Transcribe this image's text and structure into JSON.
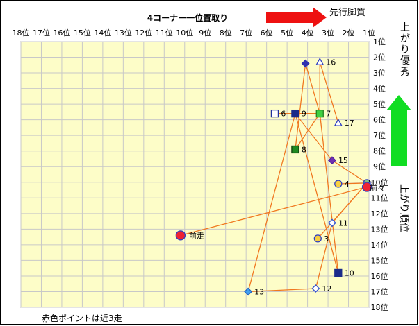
{
  "chart_data": {
    "type": "scatter",
    "title": "4コーナー一位置取り",
    "x_axis": {
      "ticks": [
        "18位",
        "17位",
        "16位",
        "15位",
        "14位",
        "13位",
        "12位",
        "11位",
        "10位",
        "9位",
        "8位",
        "7位",
        "6位",
        "5位",
        "4位",
        "3位",
        "2位",
        "1位"
      ],
      "range": [
        18,
        1
      ]
    },
    "y_axis": {
      "ticks": [
        "1位",
        "2位",
        "3位",
        "4位",
        "5位",
        "6位",
        "7位",
        "8位",
        "9位",
        "10位",
        "11位",
        "12位",
        "13位",
        "14位",
        "15位",
        "16位",
        "17位",
        "18位"
      ],
      "range": [
        1,
        18
      ]
    },
    "annotations": {
      "senko_label": "先行脚質",
      "agari_label": "上がり優秀",
      "agari_axis_label": "上がり順位",
      "footnote": "赤色ポイントは近3走"
    },
    "colors": {
      "arrow_red": "#ee1111",
      "arrow_green": "#11dd22",
      "plot_bg": "#fdfdc8",
      "grid": "#c8c8c8",
      "line": "#f07820"
    },
    "points": [
      {
        "label": "16",
        "x": 3.4,
        "y": 2.3,
        "shape": "triangle",
        "fill": "#ffffff",
        "stroke": "#3040c0"
      },
      {
        "label": "",
        "x": 4.1,
        "y": 2.4,
        "shape": "diamond",
        "fill": "#3030b0",
        "stroke": "#3030b0"
      },
      {
        "label": "6",
        "x": 5.6,
        "y": 5.6,
        "shape": "square",
        "fill": "#ffffff",
        "stroke": "#2030a0"
      },
      {
        "label": "9",
        "x": 4.6,
        "y": 5.6,
        "shape": "square",
        "fill": "#1a2a8a",
        "stroke": "#1a2a8a"
      },
      {
        "label": "7",
        "x": 3.4,
        "y": 5.6,
        "shape": "square",
        "fill": "#40d040",
        "stroke": "#208020"
      },
      {
        "label": "17",
        "x": 2.5,
        "y": 6.2,
        "shape": "triangle",
        "fill": "#ffffff",
        "stroke": "#3040c0"
      },
      {
        "label": "8",
        "x": 4.6,
        "y": 7.9,
        "shape": "square",
        "fill": "#208a20",
        "stroke": "#104010"
      },
      {
        "label": "15",
        "x": 2.8,
        "y": 8.6,
        "shape": "diamond",
        "fill": "#7030b0",
        "stroke": "#5020a0"
      },
      {
        "label": "4",
        "x": 2.5,
        "y": 10.1,
        "shape": "circle",
        "fill": "#f8d040",
        "stroke": "#3040c0"
      },
      {
        "label": "5",
        "x": 1.1,
        "y": 10.05,
        "shape": "circle",
        "fill": "#80c080",
        "stroke": "#3040c0"
      },
      {
        "label": "前々",
        "x": 1.1,
        "y": 10.3,
        "shape": "circle",
        "fill": "#ee2233",
        "stroke": "#3040c0"
      },
      {
        "label": "11",
        "x": 2.8,
        "y": 12.6,
        "shape": "diamond",
        "fill": "#ffffff",
        "stroke": "#3050d0"
      },
      {
        "label": "3",
        "x": 3.5,
        "y": 13.6,
        "shape": "circle",
        "fill": "#f8d040",
        "stroke": "#3040c0"
      },
      {
        "label": "前走",
        "x": 10.2,
        "y": 13.4,
        "shape": "circle",
        "fill": "#ee2233",
        "stroke": "#3040c0"
      },
      {
        "label": "10",
        "x": 2.5,
        "y": 15.8,
        "shape": "square",
        "fill": "#1a2a8a",
        "stroke": "#1a2a8a"
      },
      {
        "label": "13",
        "x": 6.9,
        "y": 17.0,
        "shape": "diamond",
        "fill": "#40a0f0",
        "stroke": "#2060c0"
      },
      {
        "label": "12",
        "x": 3.6,
        "y": 16.8,
        "shape": "diamond",
        "fill": "#ffffff",
        "stroke": "#3050d0"
      }
    ],
    "lines": [
      [
        [
          4.1,
          2.4
        ],
        [
          4.6,
          7.9
        ]
      ],
      [
        [
          4.1,
          2.4
        ],
        [
          3.4,
          5.6
        ]
      ],
      [
        [
          3.4,
          2.3
        ],
        [
          3.4,
          5.6
        ]
      ],
      [
        [
          3.4,
          2.3
        ],
        [
          2.5,
          6.2
        ]
      ],
      [
        [
          5.6,
          5.6
        ],
        [
          3.4,
          5.6
        ]
      ],
      [
        [
          4.6,
          5.6
        ],
        [
          2.8,
          8.6
        ]
      ],
      [
        [
          4.6,
          5.6
        ],
        [
          2.5,
          15.8
        ]
      ],
      [
        [
          4.6,
          5.6
        ],
        [
          6.9,
          17.0
        ]
      ],
      [
        [
          3.4,
          5.6
        ],
        [
          2.5,
          15.8
        ]
      ],
      [
        [
          4.6,
          7.9
        ],
        [
          3.4,
          5.6
        ]
      ],
      [
        [
          2.8,
          8.6
        ],
        [
          1.1,
          10.05
        ]
      ],
      [
        [
          2.5,
          10.1
        ],
        [
          1.1,
          10.05
        ]
      ],
      [
        [
          1.1,
          10.05
        ],
        [
          2.8,
          12.6
        ]
      ],
      [
        [
          1.1,
          10.3
        ],
        [
          10.2,
          13.4
        ]
      ],
      [
        [
          2.8,
          12.6
        ],
        [
          3.6,
          16.8
        ]
      ],
      [
        [
          3.5,
          13.6
        ],
        [
          1.1,
          10.05
        ]
      ],
      [
        [
          6.9,
          17.0
        ],
        [
          3.6,
          16.8
        ]
      ]
    ]
  }
}
